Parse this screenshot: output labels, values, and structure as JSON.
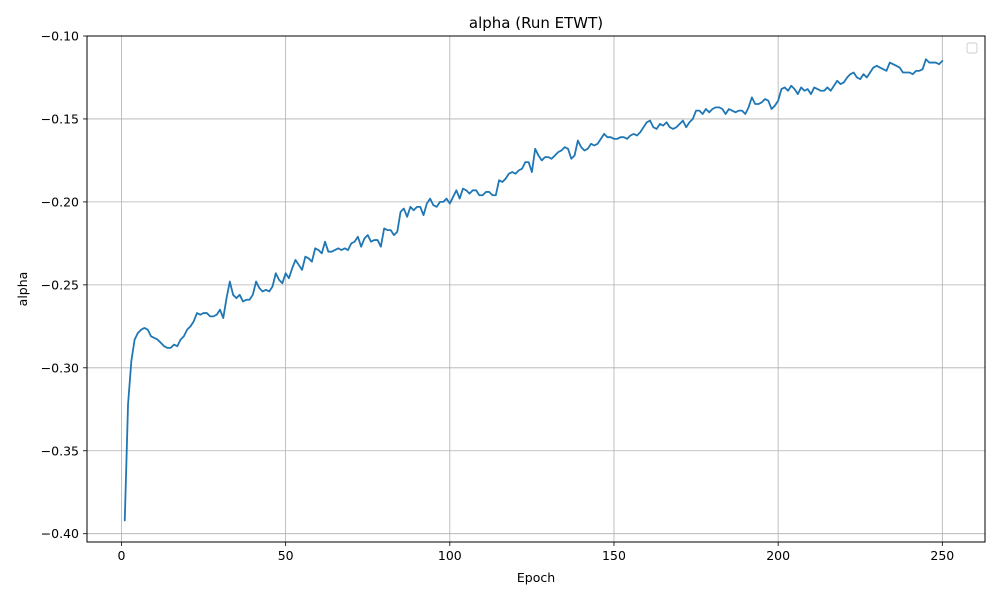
{
  "chart_data": {
    "type": "line",
    "title": "alpha (Run ETWT)",
    "xlabel": "Epoch",
    "ylabel": "alpha",
    "xlim": [
      -10.5,
      263
    ],
    "ylim": [
      -0.405,
      -0.1
    ],
    "x_ticks": [
      0,
      50,
      100,
      150,
      200,
      250
    ],
    "x_tick_labels": [
      "0",
      "50",
      "100",
      "150",
      "200",
      "250"
    ],
    "y_ticks": [
      -0.4,
      -0.35,
      -0.3,
      -0.25,
      -0.2,
      -0.15,
      -0.1
    ],
    "y_tick_labels": [
      "−0.40",
      "−0.35",
      "−0.30",
      "−0.25",
      "−0.20",
      "−0.15",
      "−0.10"
    ],
    "grid": true,
    "legend": {
      "position": "top-right",
      "entries": []
    },
    "series": [
      {
        "color": "#1f77b4",
        "x": [
          1,
          2,
          3,
          4,
          5,
          6,
          7,
          8,
          9,
          10,
          11,
          12,
          13,
          14,
          15,
          16,
          17,
          18,
          19,
          20,
          21,
          22,
          23,
          24,
          25,
          26,
          27,
          28,
          29,
          30,
          31,
          32,
          33,
          34,
          35,
          36,
          37,
          38,
          39,
          40,
          41,
          42,
          43,
          44,
          45,
          46,
          47,
          48,
          49,
          50,
          51,
          52,
          53,
          54,
          55,
          56,
          57,
          58,
          59,
          60,
          61,
          62,
          63,
          64,
          65,
          66,
          67,
          68,
          69,
          70,
          71,
          72,
          73,
          74,
          75,
          76,
          77,
          78,
          79,
          80,
          81,
          82,
          83,
          84,
          85,
          86,
          87,
          88,
          89,
          90,
          91,
          92,
          93,
          94,
          95,
          96,
          97,
          98,
          99,
          100,
          101,
          102,
          103,
          104,
          105,
          106,
          107,
          108,
          109,
          110,
          111,
          112,
          113,
          114,
          115,
          116,
          117,
          118,
          119,
          120,
          121,
          122,
          123,
          124,
          125,
          126,
          127,
          128,
          129,
          130,
          131,
          132,
          133,
          134,
          135,
          136,
          137,
          138,
          139,
          140,
          141,
          142,
          143,
          144,
          145,
          146,
          147,
          148,
          149,
          150,
          151,
          152,
          153,
          154,
          155,
          156,
          157,
          158,
          159,
          160,
          161,
          162,
          163,
          164,
          165,
          166,
          167,
          168,
          169,
          170,
          171,
          172,
          173,
          174,
          175,
          176,
          177,
          178,
          179,
          180,
          181,
          182,
          183,
          184,
          185,
          186,
          187,
          188,
          189,
          190,
          191,
          192,
          193,
          194,
          195,
          196,
          197,
          198,
          199,
          200,
          201,
          202,
          203,
          204,
          205,
          206,
          207,
          208,
          209,
          210,
          211,
          212,
          213,
          214,
          215,
          216,
          217,
          218,
          219,
          220,
          221,
          222,
          223,
          224,
          225,
          226,
          227,
          228,
          229,
          230,
          231,
          232,
          233,
          234,
          235,
          236,
          237,
          238,
          239,
          240,
          241,
          242,
          243,
          244,
          245,
          246,
          247,
          248,
          249,
          250
        ],
        "values": [
          -0.392,
          -0.322,
          -0.296,
          -0.283,
          -0.279,
          -0.277,
          -0.276,
          -0.277,
          -0.281,
          -0.282,
          -0.283,
          -0.285,
          -0.287,
          -0.288,
          -0.288,
          -0.286,
          -0.287,
          -0.283,
          -0.281,
          -0.277,
          -0.275,
          -0.272,
          -0.267,
          -0.268,
          -0.267,
          -0.267,
          -0.269,
          -0.269,
          -0.268,
          -0.265,
          -0.27,
          -0.258,
          -0.248,
          -0.256,
          -0.258,
          -0.256,
          -0.26,
          -0.259,
          -0.259,
          -0.256,
          -0.248,
          -0.252,
          -0.254,
          -0.253,
          -0.254,
          -0.251,
          -0.243,
          -0.247,
          -0.249,
          -0.243,
          -0.246,
          -0.24,
          -0.235,
          -0.238,
          -0.241,
          -0.233,
          -0.234,
          -0.236,
          -0.228,
          -0.229,
          -0.231,
          -0.224,
          -0.23,
          -0.23,
          -0.229,
          -0.228,
          -0.229,
          -0.228,
          -0.229,
          -0.225,
          -0.224,
          -0.221,
          -0.227,
          -0.222,
          -0.22,
          -0.224,
          -0.223,
          -0.223,
          -0.227,
          -0.216,
          -0.217,
          -0.217,
          -0.22,
          -0.218,
          -0.206,
          -0.204,
          -0.209,
          -0.203,
          -0.205,
          -0.203,
          -0.203,
          -0.208,
          -0.201,
          -0.198,
          -0.202,
          -0.203,
          -0.2,
          -0.2,
          -0.198,
          -0.201,
          -0.197,
          -0.193,
          -0.198,
          -0.192,
          -0.193,
          -0.195,
          -0.193,
          -0.193,
          -0.196,
          -0.196,
          -0.194,
          -0.194,
          -0.196,
          -0.196,
          -0.187,
          -0.188,
          -0.186,
          -0.183,
          -0.182,
          -0.183,
          -0.181,
          -0.18,
          -0.176,
          -0.176,
          -0.182,
          -0.168,
          -0.172,
          -0.175,
          -0.173,
          -0.173,
          -0.174,
          -0.172,
          -0.17,
          -0.169,
          -0.167,
          -0.168,
          -0.174,
          -0.172,
          -0.163,
          -0.167,
          -0.169,
          -0.168,
          -0.165,
          -0.166,
          -0.165,
          -0.162,
          -0.159,
          -0.161,
          -0.161,
          -0.162,
          -0.162,
          -0.161,
          -0.161,
          -0.162,
          -0.16,
          -0.159,
          -0.16,
          -0.158,
          -0.155,
          -0.152,
          -0.151,
          -0.155,
          -0.156,
          -0.153,
          -0.154,
          -0.152,
          -0.155,
          -0.156,
          -0.155,
          -0.153,
          -0.151,
          -0.155,
          -0.152,
          -0.15,
          -0.145,
          -0.145,
          -0.147,
          -0.144,
          -0.146,
          -0.144,
          -0.143,
          -0.143,
          -0.144,
          -0.147,
          -0.144,
          -0.145,
          -0.146,
          -0.145,
          -0.145,
          -0.147,
          -0.143,
          -0.137,
          -0.141,
          -0.141,
          -0.14,
          -0.138,
          -0.139,
          -0.144,
          -0.142,
          -0.139,
          -0.132,
          -0.131,
          -0.133,
          -0.13,
          -0.132,
          -0.135,
          -0.131,
          -0.133,
          -0.132,
          -0.135,
          -0.131,
          -0.132,
          -0.133,
          -0.133,
          -0.131,
          -0.133,
          -0.13,
          -0.127,
          -0.129,
          -0.128,
          -0.125,
          -0.123,
          -0.122,
          -0.125,
          -0.126,
          -0.123,
          -0.125,
          -0.122,
          -0.119,
          -0.118,
          -0.119,
          -0.12,
          -0.121,
          -0.116,
          -0.117,
          -0.118,
          -0.119,
          -0.122,
          -0.122,
          -0.122,
          -0.123,
          -0.121,
          -0.121,
          -0.12,
          -0.114,
          -0.116,
          -0.116,
          -0.116,
          -0.117,
          -0.115
        ]
      }
    ]
  }
}
